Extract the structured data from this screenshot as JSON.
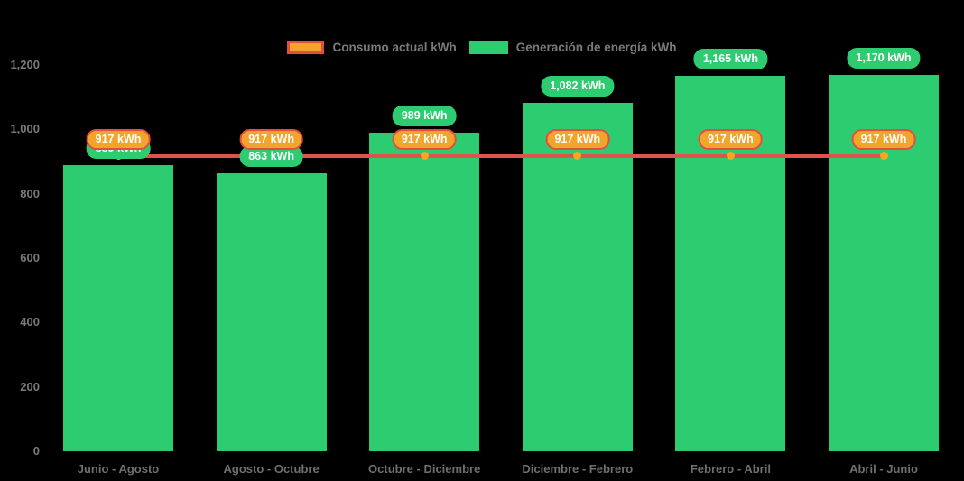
{
  "legend": {
    "items": [
      {
        "label": "Consumo actual kWh",
        "swatch_fill": "#F2A52B",
        "swatch_border": "#E74C3C"
      },
      {
        "label": "Generación de energía kWh",
        "swatch_fill": "#2ECC71"
      }
    ]
  },
  "chart_data": {
    "type": "bar",
    "title": "",
    "xlabel": "",
    "ylabel": "",
    "background": "#000000",
    "grid": false,
    "legend_position": "top",
    "ylim": [
      0,
      1200
    ],
    "yticks": [
      {
        "label": "1,200",
        "value": 1200
      },
      {
        "label": "1,000",
        "value": 1000
      },
      {
        "label": "800",
        "value": 800
      },
      {
        "label": "600",
        "value": 600
      },
      {
        "label": "400",
        "value": 400
      },
      {
        "label": "200",
        "value": 200
      },
      {
        "label": "0",
        "value": 0
      }
    ],
    "categories": [
      "Junio - Agosto",
      "Agosto - Octubre",
      "Octubre - Diciembre",
      "Diciembre - Febrero",
      "Febrero - Abril",
      "Abril - Junio"
    ],
    "series": [
      {
        "name": "Generación de energía kWh",
        "type": "bar",
        "color": "#2ECC71",
        "values": [
          889,
          863,
          989,
          1082,
          1165,
          1170
        ],
        "labels": [
          "889 kWh",
          "863 kWh",
          "989 kWh",
          "1,082 kWh",
          "1,165 kWh",
          "1,170 kWh"
        ]
      },
      {
        "name": "Consumo actual kWh",
        "type": "line",
        "color": "#E0524C",
        "bullet_color": "#F5A623",
        "values": [
          917,
          917,
          917,
          917,
          917,
          917
        ],
        "labels": [
          "917 kWh",
          "917 kWh",
          "917 kWh",
          "917 kWh",
          "917 kWh",
          "917 kWh"
        ]
      }
    ]
  }
}
